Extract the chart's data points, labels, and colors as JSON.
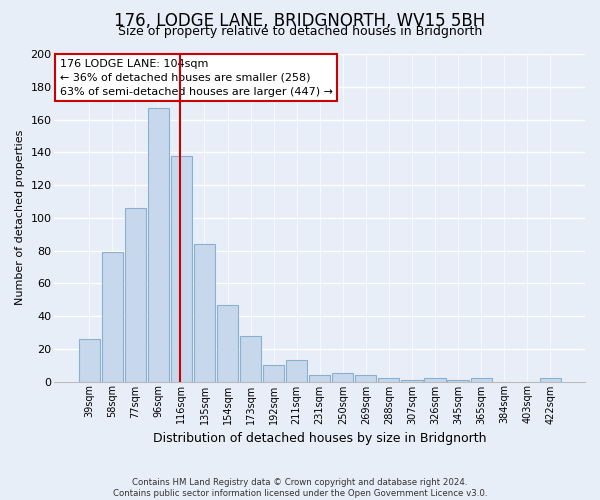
{
  "title": "176, LODGE LANE, BRIDGNORTH, WV15 5BH",
  "subtitle": "Size of property relative to detached houses in Bridgnorth",
  "xlabel": "Distribution of detached houses by size in Bridgnorth",
  "ylabel": "Number of detached properties",
  "bar_labels": [
    "39sqm",
    "58sqm",
    "77sqm",
    "96sqm",
    "116sqm",
    "135sqm",
    "154sqm",
    "173sqm",
    "192sqm",
    "211sqm",
    "231sqm",
    "250sqm",
    "269sqm",
    "288sqm",
    "307sqm",
    "326sqm",
    "345sqm",
    "365sqm",
    "384sqm",
    "403sqm",
    "422sqm"
  ],
  "bar_values": [
    26,
    79,
    106,
    167,
    138,
    84,
    47,
    28,
    10,
    13,
    4,
    5,
    4,
    2,
    1,
    2,
    1,
    2,
    0,
    0,
    2
  ],
  "bar_color": "#c8d8ec",
  "bar_edge_color": "#8ab0d0",
  "vline_x_idx": 3.93,
  "vline_color": "#cc0000",
  "annotation_title": "176 LODGE LANE: 104sqm",
  "annotation_line1": "← 36% of detached houses are smaller (258)",
  "annotation_line2": "63% of semi-detached houses are larger (447) →",
  "annotation_box_color": "#ffffff",
  "annotation_box_edge_color": "#cc0000",
  "ylim": [
    0,
    200
  ],
  "yticks": [
    0,
    20,
    40,
    60,
    80,
    100,
    120,
    140,
    160,
    180,
    200
  ],
  "footer_line1": "Contains HM Land Registry data © Crown copyright and database right 2024.",
  "footer_line2": "Contains public sector information licensed under the Open Government Licence v3.0.",
  "background_color": "#e8eef8",
  "plot_bg_color": "#e8eef8",
  "grid_color": "#ffffff",
  "title_fontsize": 12,
  "subtitle_fontsize": 9
}
